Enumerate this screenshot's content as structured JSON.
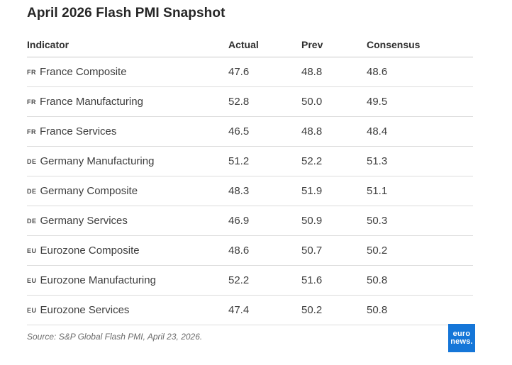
{
  "title": "April 2026 Flash PMI Snapshot",
  "table": {
    "columns": [
      "Indicator",
      "Actual",
      "Prev",
      "Consensus"
    ],
    "rows": [
      {
        "code": "FR",
        "indicator": "France Composite",
        "actual": "47.6",
        "prev": "48.8",
        "consensus": "48.6"
      },
      {
        "code": "FR",
        "indicator": "France Manufacturing",
        "actual": "52.8",
        "prev": "50.0",
        "consensus": "49.5"
      },
      {
        "code": "FR",
        "indicator": "France Services",
        "actual": "46.5",
        "prev": "48.8",
        "consensus": "48.4"
      },
      {
        "code": "DE",
        "indicator": "Germany Manufacturing",
        "actual": "51.2",
        "prev": "52.2",
        "consensus": "51.3"
      },
      {
        "code": "DE",
        "indicator": "Germany Composite",
        "actual": "48.3",
        "prev": "51.9",
        "consensus": "51.1"
      },
      {
        "code": "DE",
        "indicator": "Germany Services",
        "actual": "46.9",
        "prev": "50.9",
        "consensus": "50.3"
      },
      {
        "code": "EU",
        "indicator": "Eurozone Composite",
        "actual": "48.6",
        "prev": "50.7",
        "consensus": "50.2"
      },
      {
        "code": "EU",
        "indicator": "Eurozone Manufacturing",
        "actual": "52.2",
        "prev": "51.6",
        "consensus": "50.8"
      },
      {
        "code": "EU",
        "indicator": "Eurozone Services",
        "actual": "47.4",
        "prev": "50.2",
        "consensus": "50.8"
      }
    ]
  },
  "footer": {
    "source": "Source: S&P Global Flash PMI, April 23, 2026.",
    "logo_line1": "euro",
    "logo_line2": "news.",
    "logo_color": "#1576d8"
  },
  "chart_data": {
    "type": "table",
    "title": "April 2026 Flash PMI Snapshot",
    "columns": [
      "Indicator",
      "Actual",
      "Prev",
      "Consensus"
    ],
    "rows": [
      [
        "FR France Composite",
        47.6,
        48.8,
        48.6
      ],
      [
        "FR France Manufacturing",
        52.8,
        50.0,
        49.5
      ],
      [
        "FR France Services",
        46.5,
        48.8,
        48.4
      ],
      [
        "DE Germany Manufacturing",
        51.2,
        52.2,
        51.3
      ],
      [
        "DE Germany Composite",
        48.3,
        51.9,
        51.1
      ],
      [
        "DE Germany Services",
        46.9,
        50.9,
        50.3
      ],
      [
        "EU Eurozone Composite",
        48.6,
        50.7,
        50.2
      ],
      [
        "EU Eurozone Manufacturing",
        52.2,
        51.6,
        50.8
      ],
      [
        "EU Eurozone Services",
        47.4,
        50.2,
        50.8
      ]
    ],
    "annotations": [
      "Source: S&P Global Flash PMI, April 23, 2026."
    ]
  }
}
